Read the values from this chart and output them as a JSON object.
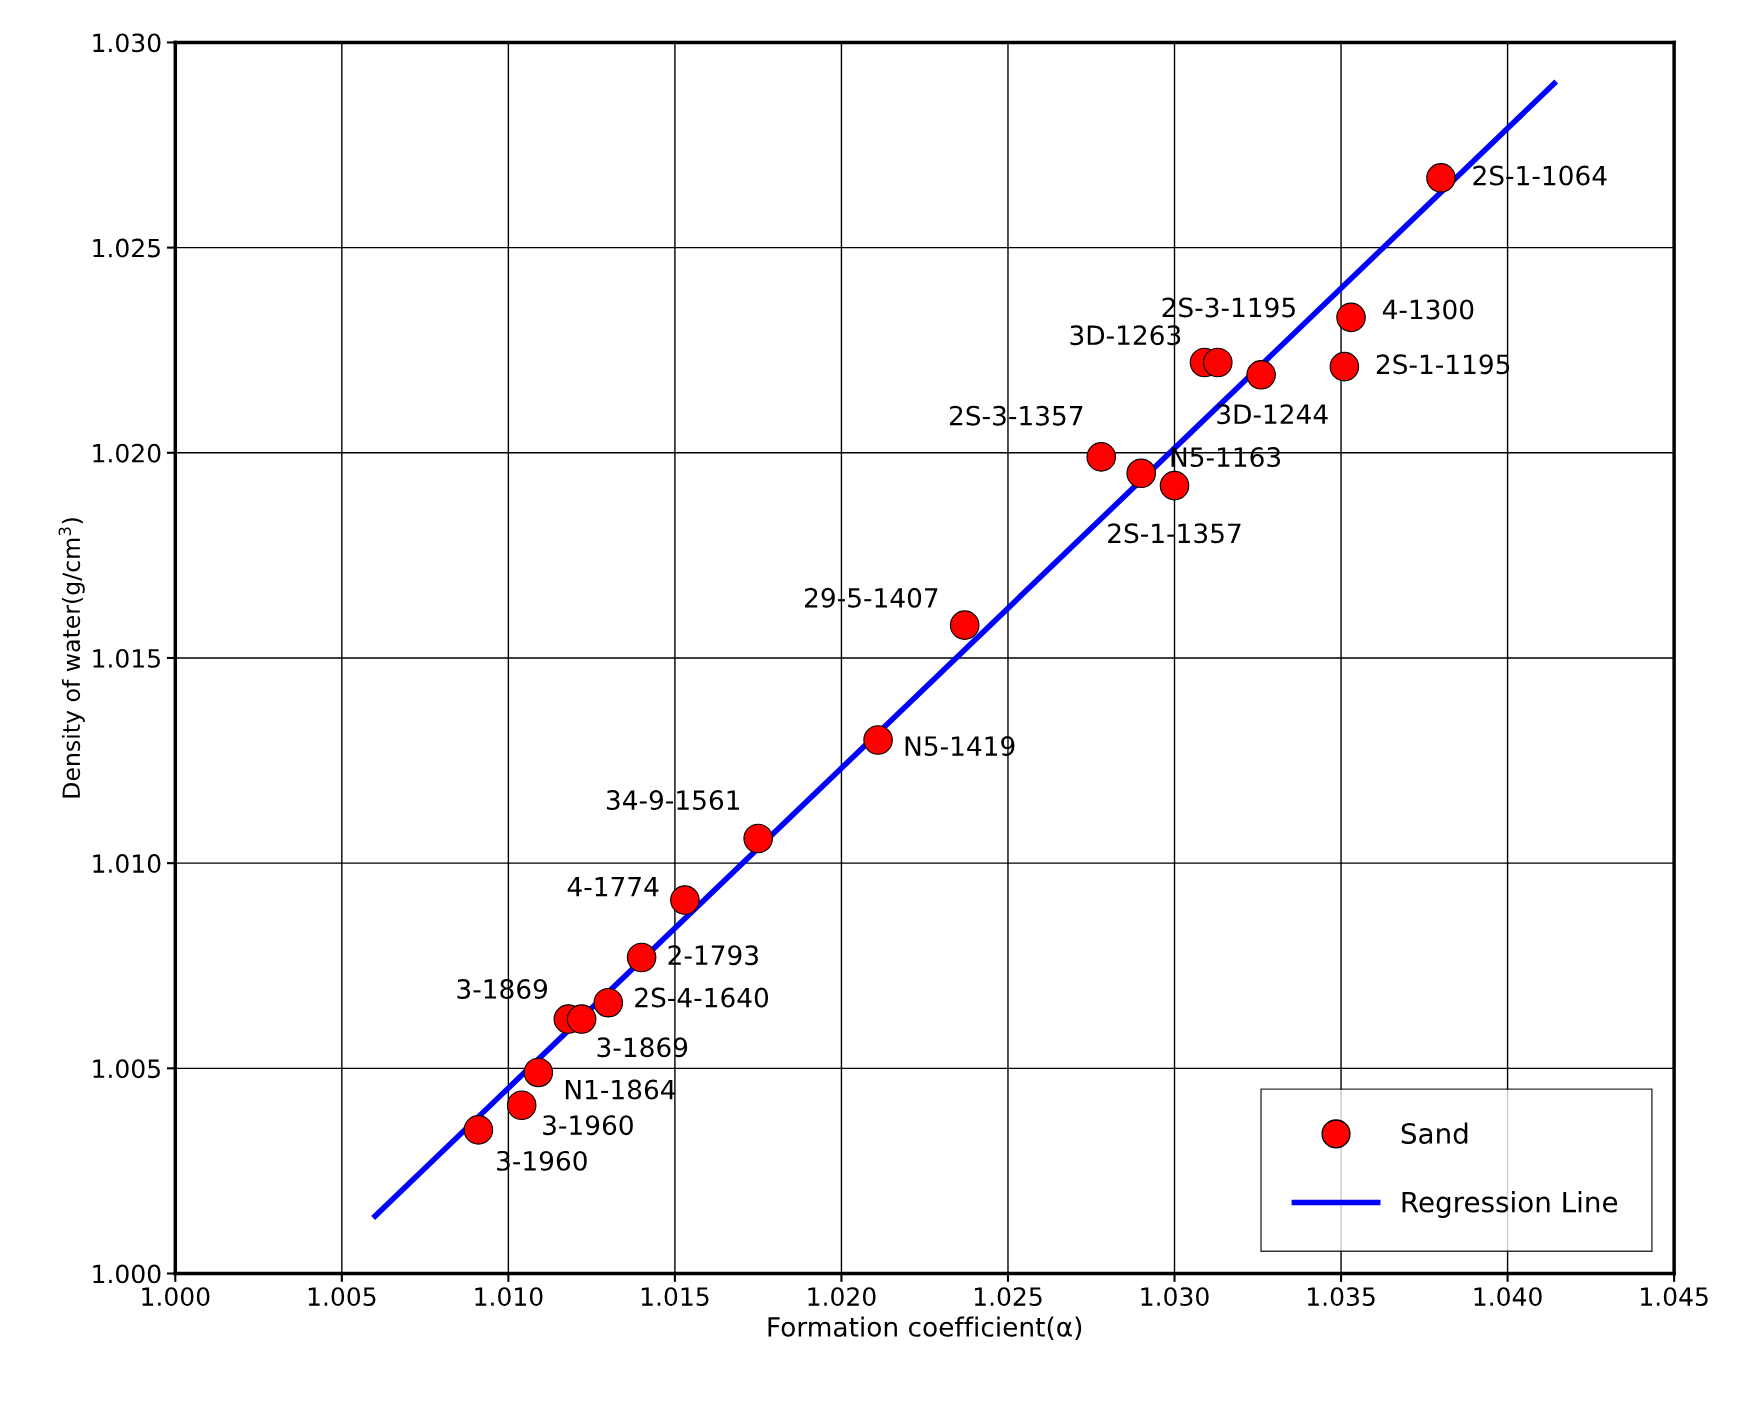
{
  "chart_data": {
    "type": "scatter",
    "xlabel": "Formation coefficient(α)",
    "ylabel": "Density of water(g/cm$^{3}$)",
    "xlim": [
      1.0,
      1.045
    ],
    "xticks": [
      {
        "value": 1.0,
        "label": "1.000"
      },
      {
        "value": 1.005,
        "label": "1.005"
      },
      {
        "value": 1.01,
        "label": "1.010"
      },
      {
        "value": 1.015,
        "label": "1.015"
      },
      {
        "value": 1.02,
        "label": "1.020"
      },
      {
        "value": 1.025,
        "label": "1.025"
      },
      {
        "value": 1.03,
        "label": "1.030"
      },
      {
        "value": 1.035,
        "label": "1.035"
      },
      {
        "value": 1.04,
        "label": "1.040"
      },
      {
        "value": 1.045,
        "label": "1.045"
      }
    ],
    "ylim": [
      1.0,
      1.03
    ],
    "yticks": [
      {
        "value": 1.0,
        "label": "1.000"
      },
      {
        "value": 1.005,
        "label": "1.005"
      },
      {
        "value": 1.01,
        "label": "1.010"
      },
      {
        "value": 1.015,
        "label": "1.015"
      },
      {
        "value": 1.02,
        "label": "1.020"
      },
      {
        "value": 1.025,
        "label": "1.025"
      },
      {
        "value": 1.03,
        "label": "1.030"
      }
    ],
    "grid": true,
    "legend": "bottom right",
    "series": [
      {
        "name": "Sand",
        "marker": "circle",
        "color": "#ff0000",
        "x": [
          1.0091,
          1.0104,
          1.0109,
          1.0118,
          1.0122,
          1.013,
          1.014,
          1.0153,
          1.0175,
          1.0211,
          1.0237,
          1.0278,
          1.029,
          1.03,
          1.0309,
          1.0313,
          1.0326,
          1.0351,
          1.0353,
          1.038
        ],
        "values": [
          1.0035,
          1.0041,
          1.0049,
          1.0062,
          1.0062,
          1.0066,
          1.0077,
          1.0091,
          1.0106,
          1.013,
          1.0158,
          1.0199,
          1.0195,
          1.0192,
          1.0222,
          1.0222,
          1.0219,
          1.0221,
          1.0233,
          1.0267
        ]
      },
      {
        "name": "Regression Line",
        "type": "line",
        "color": "#0000ff",
        "x": [
          1.006,
          1.0414
        ],
        "values": [
          1.0014,
          1.029
        ]
      }
    ],
    "annotations": [
      {
        "text": "3-1960",
        "x": 1.0091,
        "y": 1.0035
      },
      {
        "text": "3-1960",
        "x": 1.0104,
        "y": 1.0041
      },
      {
        "text": "N1-1864",
        "x": 1.0109,
        "y": 1.0049
      },
      {
        "text": "3-1869",
        "x": 1.0118,
        "y": 1.0062
      },
      {
        "text": "3-1869",
        "x": 1.0122,
        "y": 1.0062
      },
      {
        "text": "2S-4-1640",
        "x": 1.013,
        "y": 1.0066
      },
      {
        "text": "2-1793",
        "x": 1.014,
        "y": 1.0077
      },
      {
        "text": "4-1774",
        "x": 1.0153,
        "y": 1.0091
      },
      {
        "text": "34-9-1561",
        "x": 1.0175,
        "y": 1.0106
      },
      {
        "text": "N5-1419",
        "x": 1.0211,
        "y": 1.013
      },
      {
        "text": "29-5-1407",
        "x": 1.0237,
        "y": 1.0158
      },
      {
        "text": "2S-3-1357",
        "x": 1.0278,
        "y": 1.0199
      },
      {
        "text": "N5-1163",
        "x": 1.029,
        "y": 1.0195
      },
      {
        "text": "2S-1-1357",
        "x": 1.03,
        "y": 1.0192
      },
      {
        "text": "3D-1263",
        "x": 1.0309,
        "y": 1.0222
      },
      {
        "text": "2S-3-1195",
        "x": 1.0313,
        "y": 1.0222
      },
      {
        "text": "3D-1244",
        "x": 1.0326,
        "y": 1.0219
      },
      {
        "text": "2S-1-1195",
        "x": 1.0351,
        "y": 1.0221
      },
      {
        "text": "4-1300",
        "x": 1.0353,
        "y": 1.0233
      },
      {
        "text": "2S-1-1064",
        "x": 1.038,
        "y": 1.0267
      }
    ]
  }
}
